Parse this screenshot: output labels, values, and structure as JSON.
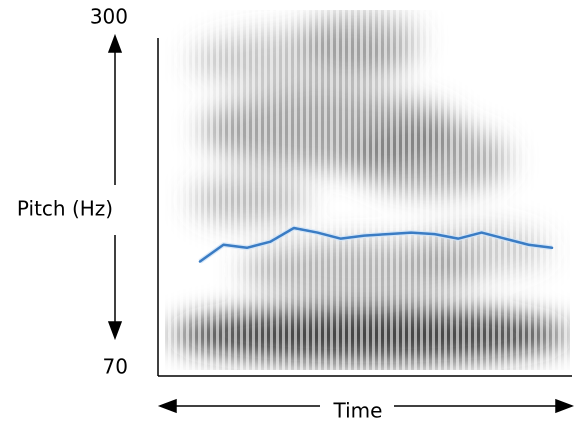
{
  "chart_data": {
    "type": "line",
    "ylabel": "Pitch (Hz)",
    "xlabel": "Time",
    "ylim": [
      70,
      300
    ],
    "yticks": [
      70,
      300
    ],
    "categories": [
      null,
      null,
      null,
      null,
      null,
      null,
      null,
      null,
      null,
      null,
      null,
      null,
      null,
      null,
      null,
      null
    ],
    "series": [
      {
        "color": "#3a7cc4",
        "values": [
          140,
          151,
          149,
          153,
          162,
          159,
          155,
          157,
          158,
          159,
          158,
          155,
          159,
          155,
          151,
          149
        ]
      }
    ]
  }
}
